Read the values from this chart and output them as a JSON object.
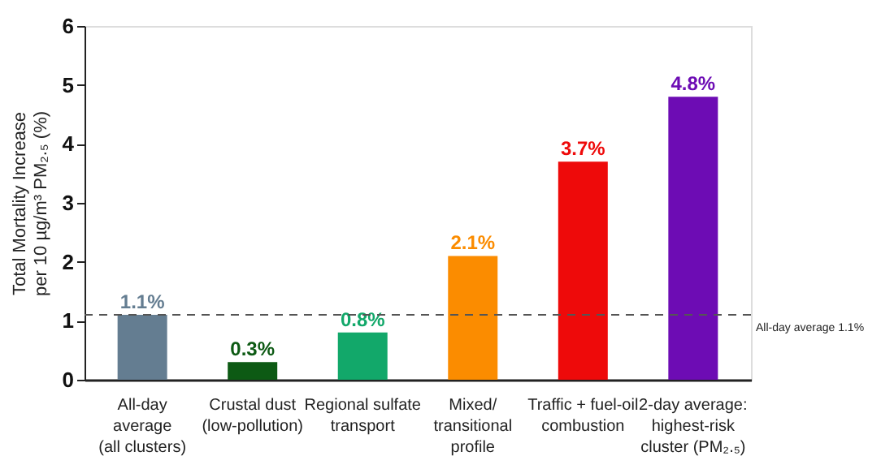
{
  "chart_data": {
    "type": "bar",
    "ylabel": "Total Mortality Increase\nper 10 µg/m³ PM₂.₅ (%)",
    "categories": [
      "All-day\naverage\n(all clusters)",
      "Crustal dust\n(low-pollution)",
      "Regional sulfate\ntransport",
      "Mixed/\ntransitional\nprofile",
      "Traffic + fuel-oil\ncombustion",
      "2-day average:\nhighest-risk\ncluster (PM₂.₅)"
    ],
    "values": [
      1.1,
      0.3,
      0.8,
      2.1,
      3.7,
      4.8
    ],
    "value_labels": [
      "1.1%",
      "0.3%",
      "0.8%",
      "2.1%",
      "3.7%",
      "4.8%"
    ],
    "colors": [
      "#647d91",
      "#0d5a14",
      "#12a86a",
      "#fb8c00",
      "#ee0a0a",
      "#6d0cb4"
    ],
    "ylim": [
      0,
      6
    ],
    "yticks": [
      0,
      1,
      2,
      3,
      4,
      5,
      6
    ],
    "grid": false,
    "ref_lines": [
      {
        "axis": "y",
        "value": 1.1,
        "label": "All-day average 1.1%",
        "color": "#555555",
        "line_style": "dashed"
      }
    ]
  }
}
